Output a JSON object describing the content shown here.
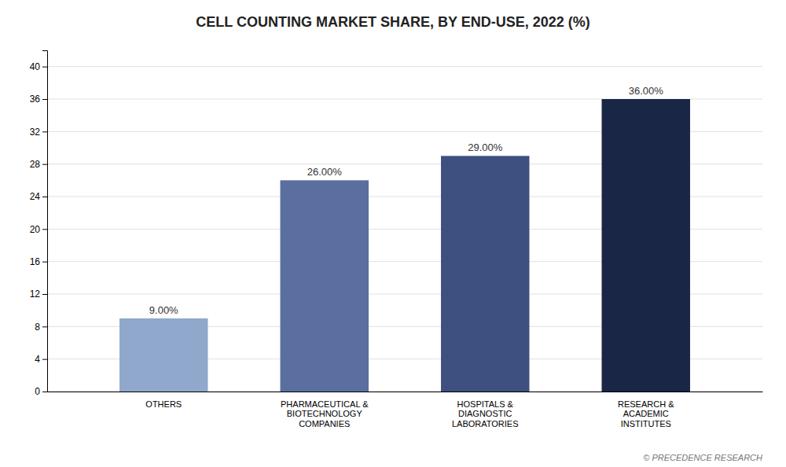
{
  "chart_data": {
    "type": "bar",
    "title": "CELL COUNTING MARKET SHARE, BY END-USE, 2022 (%)",
    "categories": [
      "OTHERS",
      "PHARMACEUTICAL &\nBIOTECHNOLOGY\nCOMPANIES",
      "HOSPITALS &\nDIAGNOSTIC\nLABORATORIES",
      "RESEARCH &\nACADEMIC\nINSTITUTES"
    ],
    "values": [
      9.0,
      26.0,
      29.0,
      36.0
    ],
    "value_labels": [
      "9.00%",
      "26.00%",
      "29.00%",
      "36.00%"
    ],
    "data_labels": true,
    "colors": [
      "#8fa8cc",
      "#5a6fa0",
      "#3d5080",
      "#1a2645"
    ],
    "ylim": [
      0,
      42
    ],
    "yticks": [
      0,
      4,
      8,
      12,
      16,
      20,
      24,
      28,
      32,
      36,
      40
    ],
    "grid": true,
    "annotations": [
      "© PRECEDENCE RESEARCH"
    ]
  }
}
